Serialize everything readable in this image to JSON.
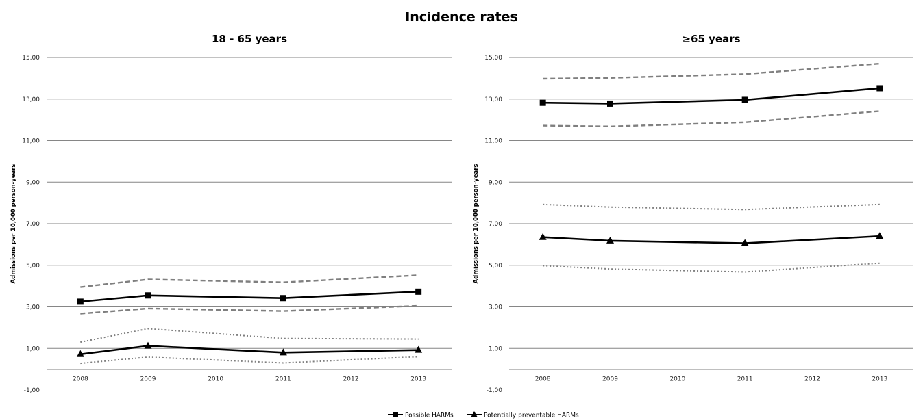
{
  "title": "Incidence rates",
  "legend": [
    {
      "name": "Possible HARMs",
      "marker": "square"
    },
    {
      "name": "Potentially preventable HARMs",
      "marker": "triangle"
    }
  ],
  "chart_data": [
    {
      "type": "line",
      "title": "18 - 65 years",
      "ylabel": "Admissions per 10,000 person-years",
      "xlabel": "",
      "ylim": [
        -1,
        15
      ],
      "yticks": [
        "-1,00",
        "1,00",
        "3,00",
        "5,00",
        "7,00",
        "9,00",
        "11,00",
        "13,00",
        "15,00"
      ],
      "categories": [
        "2008",
        "2009",
        "2010",
        "2011",
        "2012",
        "2013"
      ],
      "grid": true,
      "series": [
        {
          "name": "Possible HARMs",
          "style": "solid",
          "marker": "square",
          "x": [
            "2008",
            "2009",
            "2011",
            "2013"
          ],
          "values": [
            3.25,
            3.55,
            3.42,
            3.73
          ]
        },
        {
          "role": "upper",
          "of": "Possible HARMs",
          "style": "dashed",
          "x": [
            "2008",
            "2009",
            "2011",
            "2013"
          ],
          "values": [
            3.95,
            4.32,
            4.18,
            4.52
          ]
        },
        {
          "role": "lower",
          "of": "Possible HARMs",
          "style": "dashed",
          "x": [
            "2008",
            "2009",
            "2011",
            "2013"
          ],
          "values": [
            2.67,
            2.92,
            2.8,
            3.05
          ]
        },
        {
          "name": "Potentially preventable HARMs",
          "style": "solid",
          "marker": "triangle",
          "x": [
            "2008",
            "2009",
            "2011",
            "2013"
          ],
          "values": [
            0.72,
            1.12,
            0.8,
            0.92
          ]
        },
        {
          "role": "upper",
          "of": "Potentially preventable HARMs",
          "style": "dotted",
          "x": [
            "2008",
            "2009",
            "2011",
            "2013"
          ],
          "values": [
            1.3,
            1.95,
            1.48,
            1.45
          ]
        },
        {
          "role": "lower",
          "of": "Potentially preventable HARMs",
          "style": "dotted",
          "x": [
            "2008",
            "2009",
            "2011",
            "2013"
          ],
          "values": [
            0.28,
            0.58,
            0.3,
            0.6
          ]
        }
      ]
    },
    {
      "type": "line",
      "title": "≥65 years",
      "ylabel": "Admissions per 10,000 person-years",
      "xlabel": "",
      "ylim": [
        -1,
        15
      ],
      "yticks": [
        "-1,00",
        "1,00",
        "3,00",
        "5,00",
        "7,00",
        "9,00",
        "11,00",
        "13,00",
        "15,00"
      ],
      "categories": [
        "2008",
        "2009",
        "2010",
        "2011",
        "2012",
        "2013"
      ],
      "grid": true,
      "series": [
        {
          "name": "Possible HARMs",
          "style": "solid",
          "marker": "square",
          "x": [
            "2008",
            "2009",
            "2011",
            "2013"
          ],
          "values": [
            12.82,
            12.78,
            12.96,
            13.52
          ]
        },
        {
          "role": "upper",
          "of": "Possible HARMs",
          "style": "dashed",
          "x": [
            "2008",
            "2009",
            "2011",
            "2013"
          ],
          "values": [
            13.98,
            14.02,
            14.2,
            14.7
          ]
        },
        {
          "role": "lower",
          "of": "Possible HARMs",
          "style": "dashed",
          "x": [
            "2008",
            "2009",
            "2011",
            "2013"
          ],
          "values": [
            11.72,
            11.68,
            11.88,
            12.42
          ]
        },
        {
          "name": "Potentially preventable HARMs",
          "style": "solid",
          "marker": "triangle",
          "x": [
            "2008",
            "2009",
            "2011",
            "2013"
          ],
          "values": [
            6.35,
            6.18,
            6.06,
            6.4
          ]
        },
        {
          "role": "upper",
          "of": "Potentially preventable HARMs",
          "style": "dotted",
          "x": [
            "2008",
            "2009",
            "2011",
            "2013"
          ],
          "values": [
            7.93,
            7.8,
            7.68,
            7.93
          ]
        },
        {
          "role": "lower",
          "of": "Potentially preventable HARMs",
          "style": "dotted",
          "x": [
            "2008",
            "2009",
            "2011",
            "2013"
          ],
          "values": [
            4.98,
            4.82,
            4.68,
            5.1
          ]
        }
      ]
    }
  ],
  "colors": {
    "main_line": "#000000",
    "interval_line": "#7f7f7f",
    "grid": "#868686",
    "axis_text": "#222222"
  }
}
